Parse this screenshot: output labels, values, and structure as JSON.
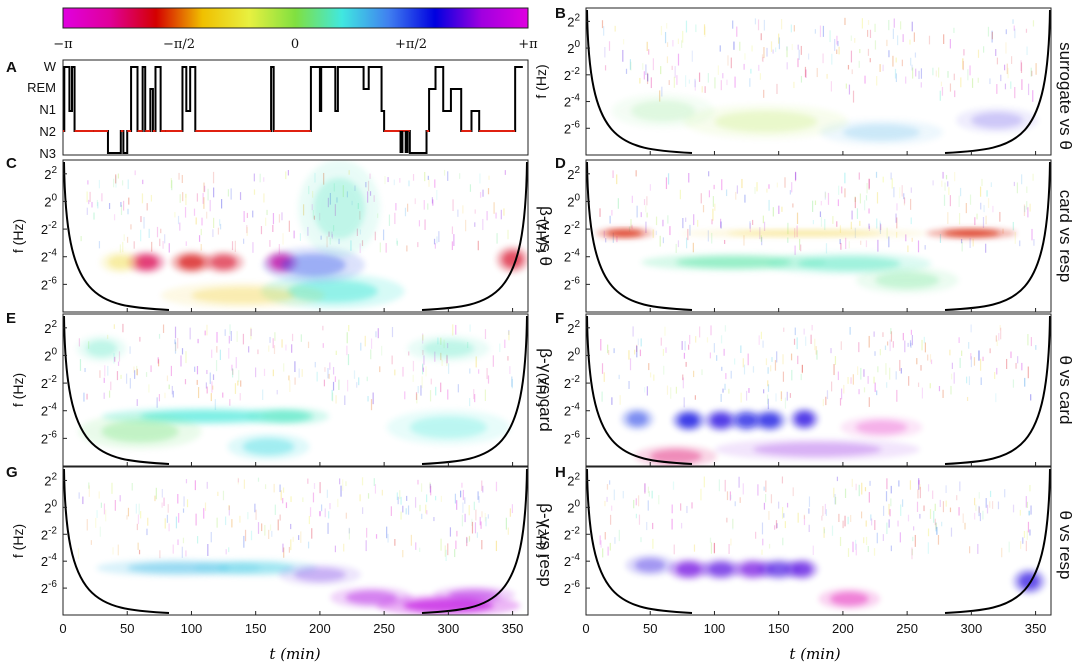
{
  "colorbar": {
    "ticks": [
      "−π",
      "−π/2",
      "0",
      "+π/2",
      "+π"
    ],
    "colors": [
      "#e000e0",
      "#e0009a",
      "#d40000",
      "#f0c000",
      "#e8f040",
      "#80e040",
      "#40e8e0",
      "#4080f0",
      "#0000e0",
      "#a000e0",
      "#e000e0"
    ]
  },
  "hypnogram": {
    "letter": "A",
    "stages": [
      "W",
      "REM",
      "N1",
      "N2",
      "N3"
    ],
    "series": [
      {
        "t": 0,
        "stage": "N2"
      },
      {
        "t": 1,
        "stage": "W"
      },
      {
        "t": 5,
        "stage": "N1"
      },
      {
        "t": 7,
        "stage": "W"
      },
      {
        "t": 9,
        "stage": "N2"
      },
      {
        "t": 24,
        "stage": "N2"
      },
      {
        "t": 35,
        "stage": "N3"
      },
      {
        "t": 45,
        "stage": "N2"
      },
      {
        "t": 47,
        "stage": "N3"
      },
      {
        "t": 50,
        "stage": "N2"
      },
      {
        "t": 53,
        "stage": "W"
      },
      {
        "t": 58,
        "stage": "N2"
      },
      {
        "t": 62,
        "stage": "W"
      },
      {
        "t": 64,
        "stage": "N2"
      },
      {
        "t": 68,
        "stage": "REM"
      },
      {
        "t": 70,
        "stage": "N2"
      },
      {
        "t": 72,
        "stage": "W"
      },
      {
        "t": 76,
        "stage": "N2"
      },
      {
        "t": 80,
        "stage": "N2"
      },
      {
        "t": 93,
        "stage": "W"
      },
      {
        "t": 96,
        "stage": "N1"
      },
      {
        "t": 99,
        "stage": "W"
      },
      {
        "t": 103,
        "stage": "N2"
      },
      {
        "t": 160,
        "stage": "N2"
      },
      {
        "t": 162,
        "stage": "W"
      },
      {
        "t": 164,
        "stage": "N2"
      },
      {
        "t": 192,
        "stage": "N2"
      },
      {
        "t": 193,
        "stage": "W"
      },
      {
        "t": 200,
        "stage": "N1"
      },
      {
        "t": 201,
        "stage": "W"
      },
      {
        "t": 212,
        "stage": "N1"
      },
      {
        "t": 214,
        "stage": "W"
      },
      {
        "t": 234,
        "stage": "REM"
      },
      {
        "t": 238,
        "stage": "W"
      },
      {
        "t": 248,
        "stage": "N1"
      },
      {
        "t": 250,
        "stage": "N2"
      },
      {
        "t": 262,
        "stage": "N2"
      },
      {
        "t": 270,
        "stage": "N3"
      },
      {
        "t": 283,
        "stage": "N2"
      },
      {
        "t": 285,
        "stage": "REM"
      },
      {
        "t": 290,
        "stage": "W"
      },
      {
        "t": 296,
        "stage": "N1"
      },
      {
        "t": 302,
        "stage": "REM"
      },
      {
        "t": 310,
        "stage": "N2"
      },
      {
        "t": 318,
        "stage": "N1"
      },
      {
        "t": 324,
        "stage": "N2"
      },
      {
        "t": 350,
        "stage": "N2"
      },
      {
        "t": 352,
        "stage": "W"
      },
      {
        "t": 358,
        "stage": "W"
      }
    ],
    "line_color": "#000000",
    "highlight_color": "#e02010"
  },
  "axes": {
    "x_ticks": [
      0,
      50,
      100,
      150,
      200,
      250,
      300,
      350
    ],
    "x_label": "t (min)",
    "x_range": [
      0,
      362
    ],
    "y_tick_labels": [
      "2^2",
      "2^0",
      "2^-2",
      "2^-4",
      "2^-6"
    ],
    "y_label": "f (Hz)"
  },
  "panels": [
    {
      "letter": "B",
      "label": "surrogate vs θ"
    },
    {
      "letter": "C",
      "label": "β-γ vs θ"
    },
    {
      "letter": "D",
      "label": "card vs resp"
    },
    {
      "letter": "E",
      "label": "β-γ vs card"
    },
    {
      "letter": "F",
      "label": "θ vs card"
    },
    {
      "letter": "G",
      "label": "β-γ vs resp"
    },
    {
      "letter": "H",
      "label": "θ vs resp"
    }
  ],
  "chart_data": {
    "type": "heatmap",
    "description_values": "wavelet phase coherence; color encodes phase difference from −π to +π",
    "x_range": [
      0,
      362
    ],
    "y_range_log2": [
      -8,
      3
    ],
    "blobs": {
      "B": [
        {
          "t": 140,
          "y": -5.5,
          "phase": -0.3,
          "strength": 0.25,
          "w": 40,
          "h": 0.8
        },
        {
          "t": 230,
          "y": -6.3,
          "phase": 1.0,
          "strength": 0.25,
          "w": 30,
          "h": 0.6
        },
        {
          "t": 60,
          "y": -4.7,
          "phase": 0.2,
          "strength": 0.2,
          "w": 25,
          "h": 0.8
        },
        {
          "t": 320,
          "y": -5.4,
          "phase": 2.0,
          "strength": 0.2,
          "w": 20,
          "h": 0.6
        }
      ],
      "C": [
        {
          "t": 65,
          "y": -4.4,
          "phase": -2.2,
          "strength": 0.85,
          "w": 9,
          "h": 0.5
        },
        {
          "t": 100,
          "y": -4.4,
          "phase": -1.9,
          "strength": 0.8,
          "w": 10,
          "h": 0.5
        },
        {
          "t": 125,
          "y": -4.4,
          "phase": -2.0,
          "strength": 0.7,
          "w": 10,
          "h": 0.5
        },
        {
          "t": 170,
          "y": -4.4,
          "phase": -2.5,
          "strength": 0.9,
          "w": 8,
          "h": 0.5
        },
        {
          "t": 210,
          "y": -6.5,
          "phase": 0.6,
          "strength": 0.6,
          "w": 35,
          "h": 0.8
        },
        {
          "t": 195,
          "y": -4.6,
          "phase": 1.5,
          "strength": 0.45,
          "w": 25,
          "h": 0.8
        },
        {
          "t": 215,
          "y": -0.5,
          "phase": 0.5,
          "strength": 0.35,
          "w": 20,
          "h": 2.2
        },
        {
          "t": 350,
          "y": -4.2,
          "phase": -2.0,
          "strength": 0.75,
          "w": 8,
          "h": 0.6
        },
        {
          "t": 45,
          "y": -4.4,
          "phase": -1.0,
          "strength": 0.4,
          "w": 10,
          "h": 0.5
        },
        {
          "t": 140,
          "y": -6.8,
          "phase": -1.2,
          "strength": 0.3,
          "w": 40,
          "h": 0.6
        }
      ],
      "D": [
        {
          "t": 30,
          "y": -2.3,
          "phase": -1.8,
          "strength": 0.9,
          "w": 14,
          "h": 0.25
        },
        {
          "t": 300,
          "y": -2.3,
          "phase": -1.8,
          "strength": 0.9,
          "w": 22,
          "h": 0.25
        },
        {
          "t": 115,
          "y": -4.4,
          "phase": 0.4,
          "strength": 0.65,
          "w": 45,
          "h": 0.4
        },
        {
          "t": 205,
          "y": -4.5,
          "phase": 0.5,
          "strength": 0.55,
          "w": 40,
          "h": 0.5
        },
        {
          "t": 170,
          "y": -2.3,
          "phase": -1.2,
          "strength": 0.35,
          "w": 60,
          "h": 0.2
        },
        {
          "t": 250,
          "y": -5.7,
          "phase": 0.3,
          "strength": 0.35,
          "w": 25,
          "h": 0.6
        }
      ],
      "E": [
        {
          "t": 110,
          "y": -4.4,
          "phase": 0.6,
          "strength": 0.75,
          "w": 50,
          "h": 0.4
        },
        {
          "t": 175,
          "y": -4.4,
          "phase": 0.5,
          "strength": 0.7,
          "w": 20,
          "h": 0.4
        },
        {
          "t": 160,
          "y": -6.6,
          "phase": 0.7,
          "strength": 0.5,
          "w": 20,
          "h": 0.6
        },
        {
          "t": 30,
          "y": 0.5,
          "phase": 0.5,
          "strength": 0.35,
          "w": 12,
          "h": 0.6
        },
        {
          "t": 300,
          "y": 0.5,
          "phase": 0.5,
          "strength": 0.35,
          "w": 20,
          "h": 0.6
        },
        {
          "t": 300,
          "y": -5.2,
          "phase": 0.6,
          "strength": 0.35,
          "w": 30,
          "h": 0.8
        },
        {
          "t": 60,
          "y": -5.5,
          "phase": 0.2,
          "strength": 0.4,
          "w": 30,
          "h": 0.8
        }
      ],
      "F": [
        {
          "t": 80,
          "y": -4.7,
          "phase": 1.9,
          "strength": 0.85,
          "w": 8,
          "h": 0.5
        },
        {
          "t": 105,
          "y": -4.7,
          "phase": 2.0,
          "strength": 0.85,
          "w": 8,
          "h": 0.5
        },
        {
          "t": 125,
          "y": -4.7,
          "phase": 1.8,
          "strength": 0.8,
          "w": 8,
          "h": 0.5
        },
        {
          "t": 143,
          "y": -4.7,
          "phase": 1.9,
          "strength": 0.8,
          "w": 8,
          "h": 0.5
        },
        {
          "t": 170,
          "y": -4.6,
          "phase": 2.0,
          "strength": 0.85,
          "w": 7,
          "h": 0.5
        },
        {
          "t": 40,
          "y": -4.6,
          "phase": 1.6,
          "strength": 0.6,
          "w": 8,
          "h": 0.5
        },
        {
          "t": 70,
          "y": -7.3,
          "phase": -2.3,
          "strength": 0.45,
          "w": 20,
          "h": 0.5
        },
        {
          "t": 180,
          "y": -6.8,
          "phase": 2.4,
          "strength": 0.3,
          "w": 50,
          "h": 0.5
        },
        {
          "t": 230,
          "y": -5.2,
          "phase": -2.8,
          "strength": 0.3,
          "w": 20,
          "h": 0.5
        }
      ],
      "G": [
        {
          "t": 90,
          "y": -4.5,
          "phase": 0.9,
          "strength": 0.55,
          "w": 40,
          "h": 0.4
        },
        {
          "t": 150,
          "y": -4.5,
          "phase": 0.8,
          "strength": 0.5,
          "w": 30,
          "h": 0.4
        },
        {
          "t": 300,
          "y": -7.3,
          "phase": 2.8,
          "strength": 0.8,
          "w": 35,
          "h": 0.5
        },
        {
          "t": 240,
          "y": -6.7,
          "phase": 2.6,
          "strength": 0.5,
          "w": 20,
          "h": 0.5
        },
        {
          "t": 320,
          "y": -6.5,
          "phase": 2.6,
          "strength": 0.5,
          "w": 20,
          "h": 0.4
        },
        {
          "t": 200,
          "y": -5.0,
          "phase": 2.2,
          "strength": 0.3,
          "w": 20,
          "h": 0.5
        }
      ],
      "H": [
        {
          "t": 80,
          "y": -4.6,
          "phase": 2.3,
          "strength": 0.8,
          "w": 10,
          "h": 0.5
        },
        {
          "t": 105,
          "y": -4.6,
          "phase": 2.2,
          "strength": 0.75,
          "w": 10,
          "h": 0.5
        },
        {
          "t": 130,
          "y": -4.6,
          "phase": 2.3,
          "strength": 0.75,
          "w": 10,
          "h": 0.5
        },
        {
          "t": 150,
          "y": -4.6,
          "phase": 2.1,
          "strength": 0.7,
          "w": 10,
          "h": 0.5
        },
        {
          "t": 168,
          "y": -4.6,
          "phase": 2.2,
          "strength": 0.8,
          "w": 8,
          "h": 0.5
        },
        {
          "t": 205,
          "y": -6.8,
          "phase": -2.7,
          "strength": 0.5,
          "w": 15,
          "h": 0.5
        },
        {
          "t": 345,
          "y": -5.5,
          "phase": 2.0,
          "strength": 0.75,
          "w": 8,
          "h": 0.6
        },
        {
          "t": 50,
          "y": -4.3,
          "phase": 2.0,
          "strength": 0.4,
          "w": 12,
          "h": 0.5
        }
      ]
    }
  }
}
